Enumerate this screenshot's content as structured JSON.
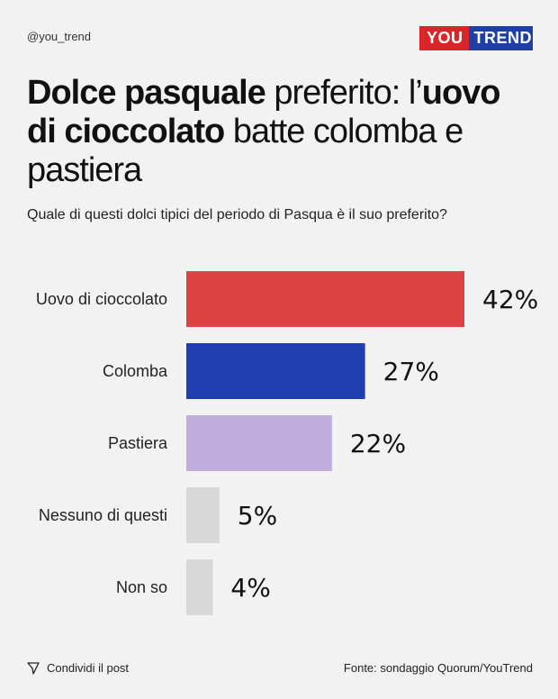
{
  "header": {
    "handle": "@you_trend",
    "logo_left": "YOU",
    "logo_right": "TREND",
    "title_parts": [
      {
        "text": "Dolce pasquale",
        "bold": true
      },
      {
        "text": " preferito: l’",
        "bold": false
      },
      {
        "text": "uovo di cioccolato",
        "bold": true
      },
      {
        "text": " batte colomba e pastiera",
        "bold": false
      }
    ],
    "subtitle": "Quale di questi dolci tipici del periodo di Pasqua è il suo preferito?"
  },
  "chart_data": {
    "type": "bar",
    "orientation": "horizontal",
    "categories": [
      "Uovo di cioccolato",
      "Colomba",
      "Pastiera",
      "Nessuno di questi",
      "Non so"
    ],
    "values": [
      42,
      27,
      22,
      5,
      4
    ],
    "value_labels": [
      "42%",
      "27%",
      "22%",
      "5%",
      "4%"
    ],
    "colors": [
      "#dc4444",
      "#1f3fae",
      "#bfaedc",
      "#d8d8d8",
      "#d8d8d8"
    ]
  },
  "footer": {
    "share_label": "Condividi il post",
    "source": "Fonte: sondaggio Quorum/YouTrend"
  }
}
